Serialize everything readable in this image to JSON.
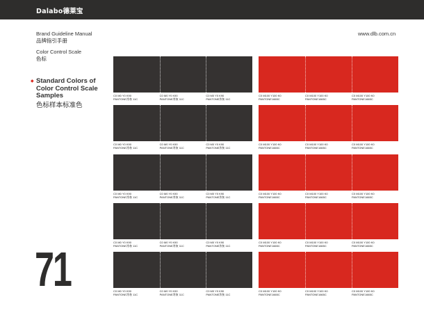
{
  "brand": {
    "logo_text": "Dalabo德莱宝"
  },
  "header": {
    "manual_title": "Brand Guideline Manual",
    "manual_title_cn": "品牌指引手册",
    "section_name": "Color Control Scale",
    "section_name_cn": "色标",
    "website": "www.dlb.com.cn"
  },
  "section": {
    "title_line1": "Standard Colors of",
    "title_line2": "Color Control Scale",
    "title_line3": "Samples",
    "title_cn": "色标样本标准色"
  },
  "page_number": "71",
  "colors": {
    "dark_swatch": "#353231",
    "red_swatch": "#d8281f",
    "top_bar": "#2e2d2c"
  },
  "dark_label": {
    "cmyk": "C0 M0 Y0 K90",
    "pantone": "PANTONE冷灰 11C"
  },
  "red_label": {
    "cmyk": "C0 M100 Y100 K0",
    "pantone": "PANTONE1665C"
  }
}
